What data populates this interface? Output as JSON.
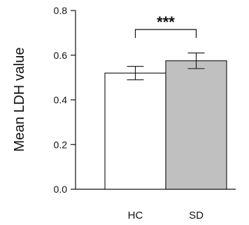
{
  "chart_data": {
    "type": "bar",
    "title": "",
    "xlabel": "",
    "ylabel": "Mean LDH value",
    "ylim": [
      0.0,
      0.8
    ],
    "yticks": [
      0.0,
      0.2,
      0.4,
      0.6,
      0.8
    ],
    "ytick_labels": [
      "0.0",
      "0.2",
      "0.4",
      "0.6",
      "0.8"
    ],
    "categories": [
      "HC",
      "SD"
    ],
    "values": [
      0.52,
      0.575
    ],
    "error": [
      0.03,
      0.035
    ],
    "bar_colors": [
      "#ffffff",
      "#c0c0c0"
    ],
    "significance": {
      "label": "***",
      "between": [
        "HC",
        "SD"
      ],
      "y": 0.715
    },
    "grid": false
  }
}
